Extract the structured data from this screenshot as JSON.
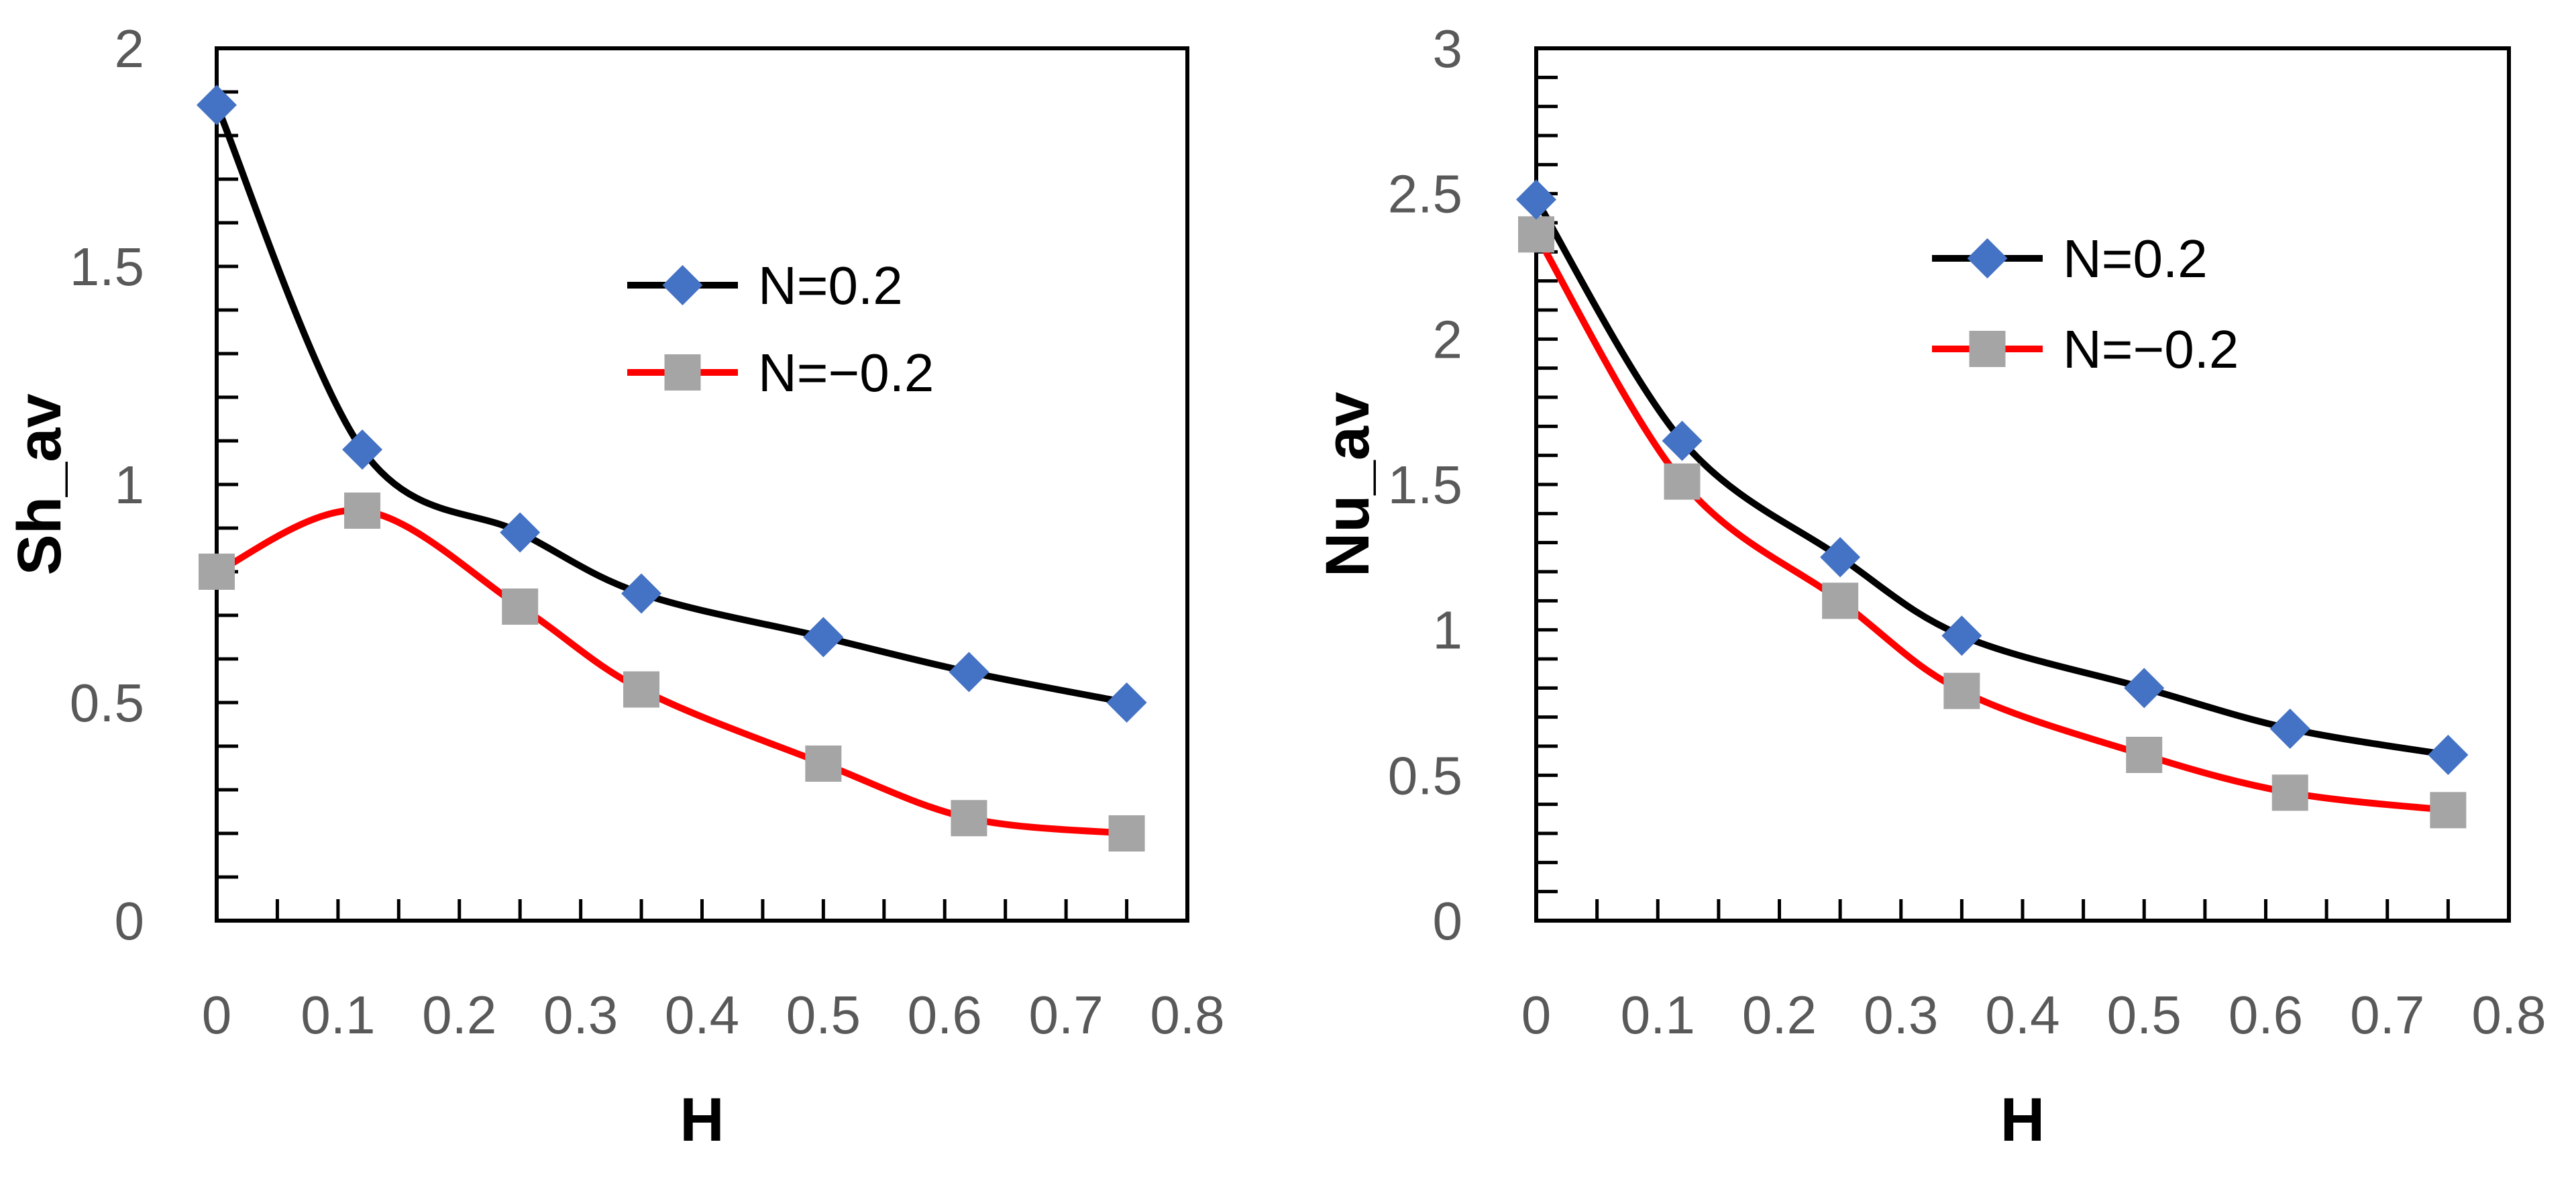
{
  "colors": {
    "series_a_line": "#000000",
    "series_a_marker": "#4472C4",
    "series_b_line": "#FF0000",
    "series_b_marker": "#A5A5A5",
    "axis": "#000000",
    "tick_text": "#595959"
  },
  "chart_data": [
    {
      "type": "line",
      "title": "",
      "xlabel": "H",
      "ylabel": "Sh_av",
      "xlim": [
        0,
        0.8
      ],
      "ylim": [
        0,
        2
      ],
      "x_ticks": [
        "0",
        "0.1",
        "0.2",
        "0.3",
        "0.4",
        "0.5",
        "0.6",
        "0.7",
        "0.8"
      ],
      "y_ticks": [
        "0",
        "0.5",
        "1",
        "1.5",
        "2"
      ],
      "x_minor_step": 0.05,
      "y_minor_step": 0.1,
      "legend_position": "upper-middle",
      "grid": false,
      "x": [
        0,
        0.12,
        0.25,
        0.35,
        0.5,
        0.62,
        0.75
      ],
      "series": [
        {
          "name": "N=0.2",
          "values": [
            1.87,
            1.08,
            0.89,
            0.75,
            0.65,
            0.57,
            0.5
          ],
          "marker": "diamond"
        },
        {
          "name": "N=−0.2",
          "values": [
            0.8,
            0.94,
            0.72,
            0.53,
            0.36,
            0.235,
            0.2
          ],
          "marker": "square"
        }
      ]
    },
    {
      "type": "line",
      "title": "",
      "xlabel": "H",
      "ylabel": "Nu_av",
      "xlim": [
        0,
        0.8
      ],
      "ylim": [
        0,
        3
      ],
      "x_ticks": [
        "0",
        "0.1",
        "0.2",
        "0.3",
        "0.4",
        "0.5",
        "0.6",
        "0.7",
        "0.8"
      ],
      "y_ticks": [
        "0",
        "0.5",
        "1",
        "1.5",
        "2",
        "2.5",
        "3"
      ],
      "x_minor_step": 0.05,
      "y_minor_step": 0.1,
      "legend_position": "upper-middle",
      "grid": false,
      "x": [
        0,
        0.12,
        0.25,
        0.35,
        0.5,
        0.62,
        0.75
      ],
      "series": [
        {
          "name": "N=0.2",
          "values": [
            2.48,
            1.65,
            1.25,
            0.98,
            0.8,
            0.66,
            0.57
          ],
          "marker": "diamond"
        },
        {
          "name": "N=−0.2",
          "values": [
            2.36,
            1.51,
            1.1,
            0.79,
            0.57,
            0.44,
            0.38
          ],
          "marker": "square"
        }
      ]
    }
  ]
}
